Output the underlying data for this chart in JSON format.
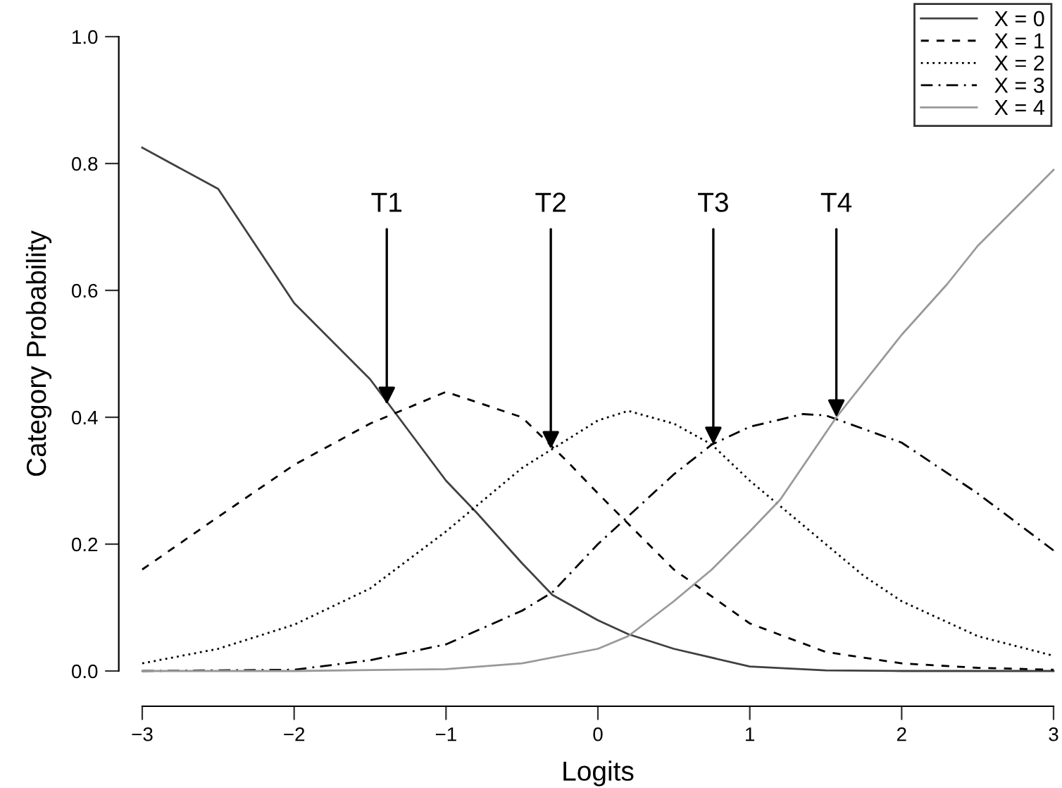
{
  "chart_data": {
    "type": "line",
    "xlabel": "Logits",
    "ylabel": "Category Probability",
    "xlim": [
      -3,
      3
    ],
    "ylim": [
      0,
      1
    ],
    "xticks": [
      {
        "value": -3,
        "label": "−3"
      },
      {
        "value": -2,
        "label": "−2"
      },
      {
        "value": -1,
        "label": "−1"
      },
      0,
      1,
      2,
      3
    ],
    "yticks": [
      {
        "value": 0,
        "label": "0.0"
      },
      0.2,
      0.4,
      0.6,
      0.8,
      {
        "value": 1,
        "label": "1.0"
      }
    ],
    "grid": false,
    "legend": "top right",
    "marker": "none",
    "series": [
      {
        "name": "X = 0",
        "color": "#404040",
        "line_style": "solid",
        "x": [
          -3,
          -2.5,
          -2,
          -1.5,
          -1,
          -0.8,
          -0.5,
          -0.3,
          0,
          0.2,
          0.5,
          1,
          1.5,
          2,
          2.5,
          3
        ],
        "values": [
          0.825,
          0.76,
          0.58,
          0.46,
          0.3,
          0.25,
          0.17,
          0.12,
          0.08,
          0.058,
          0.035,
          0.007,
          0.001,
          0.0,
          0.0,
          0.0
        ]
      },
      {
        "name": "X = 1",
        "color": "#000000",
        "line_style": "dashed",
        "x": [
          -3,
          -2.5,
          -2,
          -1.5,
          -1,
          -0.5,
          -0.2,
          0,
          0.5,
          1,
          1.5,
          2,
          2.5,
          3
        ],
        "values": [
          0.16,
          0.243,
          0.325,
          0.39,
          0.44,
          0.4,
          0.33,
          0.28,
          0.16,
          0.075,
          0.03,
          0.012,
          0.005,
          0.002
        ]
      },
      {
        "name": "X = 2",
        "color": "#000000",
        "line_style": "dotted",
        "x": [
          -3,
          -2.5,
          -2,
          -1.5,
          -1,
          -0.5,
          0,
          0.2,
          0.5,
          0.75,
          1,
          1.5,
          1.75,
          2,
          2.5,
          3
        ],
        "values": [
          0.012,
          0.035,
          0.073,
          0.13,
          0.22,
          0.32,
          0.395,
          0.41,
          0.39,
          0.357,
          0.3,
          0.2,
          0.15,
          0.11,
          0.055,
          0.024
        ]
      },
      {
        "name": "X = 3",
        "color": "#000000",
        "line_style": "dashdot",
        "x": [
          -3,
          -2,
          -1.5,
          -1,
          -0.5,
          -0.3,
          0,
          0.5,
          0.75,
          1,
          1.35,
          1.5,
          2,
          2.5,
          3
        ],
        "values": [
          0.0,
          0.002,
          0.017,
          0.042,
          0.095,
          0.124,
          0.2,
          0.31,
          0.357,
          0.385,
          0.405,
          0.403,
          0.36,
          0.28,
          0.19
        ]
      },
      {
        "name": "X = 4",
        "color": "#999999",
        "line_style": "solid",
        "x": [
          -3,
          -2,
          -1,
          -0.5,
          0,
          0.2,
          0.5,
          0.75,
          1,
          1.2,
          1.57,
          2,
          2.3,
          2.5,
          3
        ],
        "values": [
          0.0,
          0.0,
          0.003,
          0.012,
          0.035,
          0.055,
          0.11,
          0.16,
          0.22,
          0.27,
          0.4,
          0.53,
          0.61,
          0.67,
          0.79
        ]
      }
    ],
    "annotations": [
      {
        "text": "T1",
        "x": -1.39,
        "y": 0.42
      },
      {
        "text": "T2",
        "x": -0.31,
        "y": 0.35
      },
      {
        "text": "T3",
        "x": 0.76,
        "y": 0.357
      },
      {
        "text": "T4",
        "x": 1.57,
        "y": 0.4
      }
    ]
  }
}
